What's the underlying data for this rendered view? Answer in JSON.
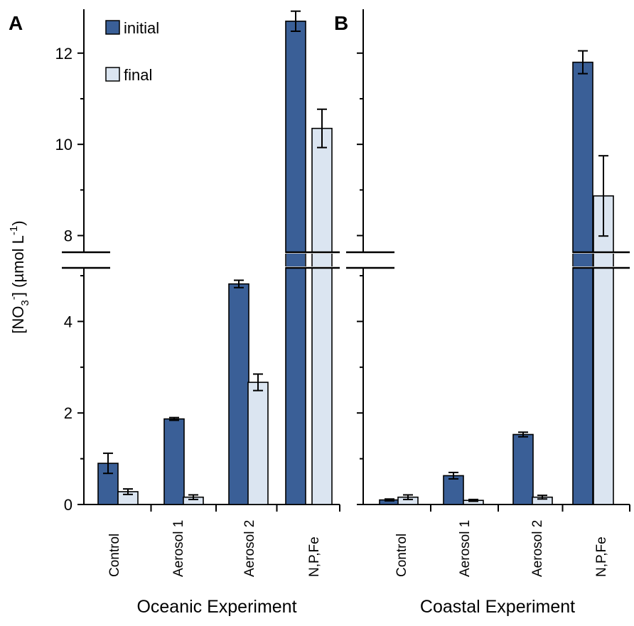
{
  "chart_data": {
    "type": "bar",
    "ylabel": "[NO3-] (µmol L-1)",
    "ylabel_parts": {
      "open": "[NO",
      "sub": "3",
      "sup": "-",
      "mid": "] (µmol L",
      "sup2": "-1",
      "close": ")"
    },
    "axis_break": {
      "lower_range": [
        0,
        5
      ],
      "upper_range": [
        7.65,
        12.9
      ]
    },
    "yticks_lower": [
      0,
      2,
      4
    ],
    "yticks_upper": [
      8,
      10,
      12
    ],
    "categories": [
      "Control",
      "Aerosol 1",
      "Aerosol 2",
      "N,P,Fe"
    ],
    "legend": [
      {
        "name": "initial",
        "color": "#3a5f97"
      },
      {
        "name": "final",
        "color": "#dbe5f1"
      }
    ],
    "panels": [
      {
        "letter": "A",
        "title": "Oceanic Experiment",
        "series": [
          {
            "name": "initial",
            "values": [
              0.9,
              1.87,
              4.82,
              12.7
            ],
            "errors": [
              0.22,
              0.03,
              0.08,
              0.22
            ]
          },
          {
            "name": "final",
            "values": [
              0.28,
              0.16,
              2.67,
              10.35
            ],
            "errors": [
              0.06,
              0.05,
              0.18,
              0.42
            ]
          }
        ]
      },
      {
        "letter": "B",
        "title": "Coastal Experiment",
        "series": [
          {
            "name": "initial",
            "values": [
              0.1,
              0.63,
              1.53,
              11.8
            ],
            "errors": [
              0.02,
              0.07,
              0.05,
              0.25
            ]
          },
          {
            "name": "final",
            "values": [
              0.16,
              0.09,
              0.16,
              8.87
            ],
            "errors": [
              0.05,
              0.02,
              0.04,
              0.88
            ]
          }
        ]
      }
    ]
  }
}
